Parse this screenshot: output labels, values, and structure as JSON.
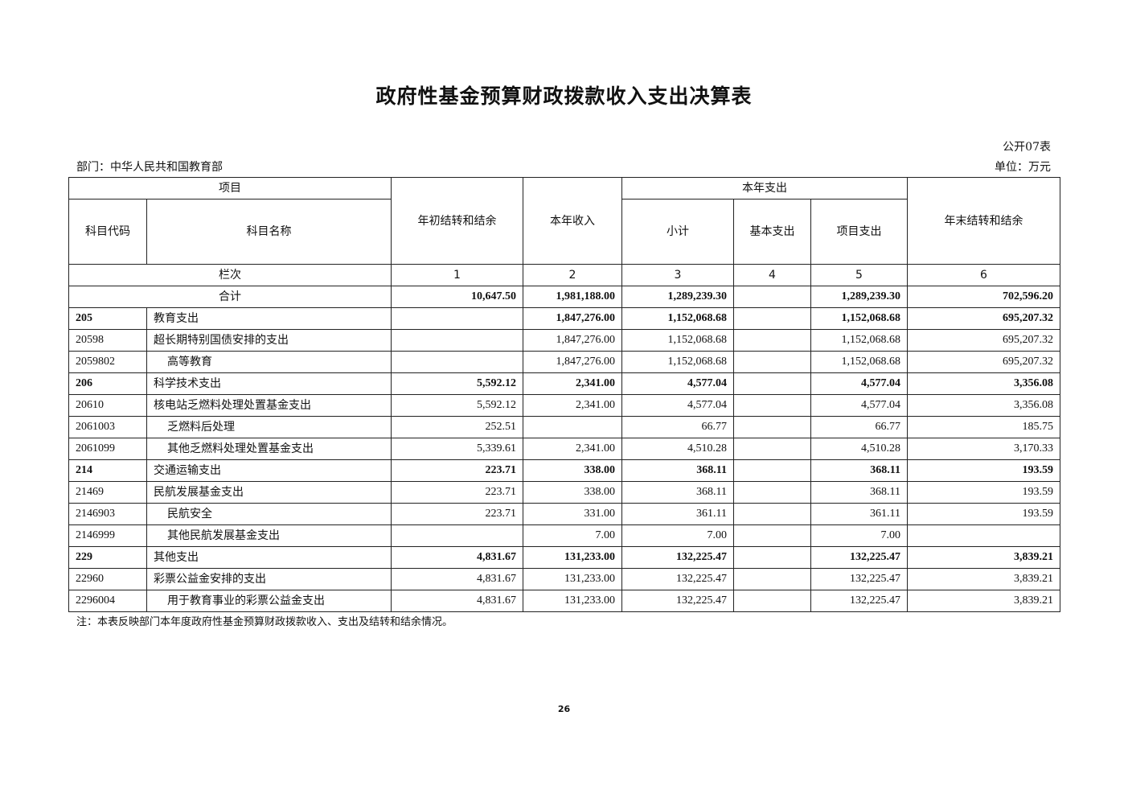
{
  "title": "政府性基金预算财政拨款收入支出决算表",
  "table_no": "公开07表",
  "department": "部门：中华人民共和国教育部",
  "unit": "单位：万元",
  "headers": {
    "item": "项目",
    "code": "科目代码",
    "name": "科目名称",
    "opening": "年初结转和结余",
    "income": "本年收入",
    "expenditure": "本年支出",
    "subtotal": "小计",
    "basic": "基本支出",
    "project": "项目支出",
    "closing": "年末结转和结余",
    "column_no": "栏次",
    "col_numbers": [
      "1",
      "2",
      "3",
      "4",
      "5",
      "6"
    ]
  },
  "total": {
    "label": "合计",
    "values": [
      "10,647.50",
      "1,981,188.00",
      "1,289,239.30",
      "",
      "1,289,239.30",
      "702,596.20"
    ]
  },
  "rows": [
    {
      "code": "205",
      "name": "教育支出",
      "level": 1,
      "values": [
        "",
        "1,847,276.00",
        "1,152,068.68",
        "",
        "1,152,068.68",
        "695,207.32"
      ]
    },
    {
      "code": "20598",
      "name": "超长期特别国债安排的支出",
      "level": 2,
      "values": [
        "",
        "1,847,276.00",
        "1,152,068.68",
        "",
        "1,152,068.68",
        "695,207.32"
      ]
    },
    {
      "code": "2059802",
      "name": "高等教育",
      "level": 3,
      "values": [
        "",
        "1,847,276.00",
        "1,152,068.68",
        "",
        "1,152,068.68",
        "695,207.32"
      ]
    },
    {
      "code": "206",
      "name": "科学技术支出",
      "level": 1,
      "values": [
        "5,592.12",
        "2,341.00",
        "4,577.04",
        "",
        "4,577.04",
        "3,356.08"
      ]
    },
    {
      "code": "20610",
      "name": "核电站乏燃料处理处置基金支出",
      "level": 2,
      "values": [
        "5,592.12",
        "2,341.00",
        "4,577.04",
        "",
        "4,577.04",
        "3,356.08"
      ]
    },
    {
      "code": "2061003",
      "name": "乏燃料后处理",
      "level": 3,
      "values": [
        "252.51",
        "",
        "66.77",
        "",
        "66.77",
        "185.75"
      ]
    },
    {
      "code": "2061099",
      "name": "其他乏燃料处理处置基金支出",
      "level": 3,
      "values": [
        "5,339.61",
        "2,341.00",
        "4,510.28",
        "",
        "4,510.28",
        "3,170.33"
      ]
    },
    {
      "code": "214",
      "name": "交通运输支出",
      "level": 1,
      "values": [
        "223.71",
        "338.00",
        "368.11",
        "",
        "368.11",
        "193.59"
      ]
    },
    {
      "code": "21469",
      "name": "民航发展基金支出",
      "level": 2,
      "values": [
        "223.71",
        "338.00",
        "368.11",
        "",
        "368.11",
        "193.59"
      ]
    },
    {
      "code": "2146903",
      "name": "民航安全",
      "level": 3,
      "values": [
        "223.71",
        "331.00",
        "361.11",
        "",
        "361.11",
        "193.59"
      ]
    },
    {
      "code": "2146999",
      "name": "其他民航发展基金支出",
      "level": 3,
      "values": [
        "",
        "7.00",
        "7.00",
        "",
        "7.00",
        ""
      ]
    },
    {
      "code": "229",
      "name": "其他支出",
      "level": 1,
      "values": [
        "4,831.67",
        "131,233.00",
        "132,225.47",
        "",
        "132,225.47",
        "3,839.21"
      ]
    },
    {
      "code": "22960",
      "name": "彩票公益金安排的支出",
      "level": 2,
      "values": [
        "4,831.67",
        "131,233.00",
        "132,225.47",
        "",
        "132,225.47",
        "3,839.21"
      ]
    },
    {
      "code": "2296004",
      "name": "用于教育事业的彩票公益金支出",
      "level": 3,
      "values": [
        "4,831.67",
        "131,233.00",
        "132,225.47",
        "",
        "132,225.47",
        "3,839.21"
      ]
    }
  ],
  "note": "注：本表反映部门本年度政府性基金预算财政拨款收入、支出及结转和结余情况。",
  "page_number": "26"
}
